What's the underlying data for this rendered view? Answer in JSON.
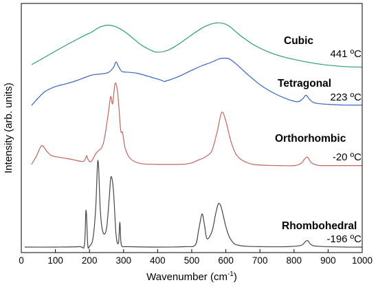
{
  "chart_data": {
    "type": "line",
    "xlabel": "Wavenumber (cm",
    "xlabel_sup": "-1",
    "xlabel_end": ")",
    "ylabel": "Intensity (arb. units)",
    "xlim": [
      0,
      1000
    ],
    "x_ticks": [
      0,
      100,
      200,
      300,
      400,
      500,
      600,
      700,
      800,
      900,
      1000
    ],
    "grid": false,
    "y_ticks_shown": false,
    "series": [
      {
        "phase": "Cubic",
        "temperature": "441 ºC",
        "color": "#2a9d7b",
        "x": [
          30,
          80,
          130,
          170,
          195,
          205,
          230,
          255,
          280,
          310,
          350,
          380,
          400,
          430,
          460,
          500,
          530,
          555,
          575,
          590,
          610,
          640,
          680,
          720,
          760,
          800,
          850,
          900,
          950,
          1000
        ],
        "y": [
          0.1,
          0.3,
          0.5,
          0.65,
          0.74,
          0.77,
          0.88,
          0.92,
          0.88,
          0.75,
          0.52,
          0.4,
          0.36,
          0.4,
          0.52,
          0.72,
          0.86,
          0.94,
          0.97,
          0.96,
          0.9,
          0.72,
          0.52,
          0.38,
          0.28,
          0.21,
          0.14,
          0.09,
          0.06,
          0.05
        ]
      },
      {
        "phase": "Tetragonal",
        "temperature": "223 ºC",
        "color": "#3563c4",
        "x": [
          30,
          50,
          70,
          100,
          130,
          160,
          190,
          210,
          230,
          255,
          270,
          278,
          285,
          295,
          310,
          340,
          380,
          410,
          420,
          425,
          440,
          470,
          500,
          530,
          560,
          580,
          595,
          610,
          630,
          660,
          700,
          740,
          780,
          810,
          825,
          835,
          845,
          860,
          900,
          950,
          1000
        ],
        "y": [
          0.05,
          0.25,
          0.42,
          0.55,
          0.62,
          0.7,
          0.8,
          0.86,
          0.88,
          0.92,
          1.05,
          1.2,
          1.08,
          0.95,
          0.93,
          0.9,
          0.8,
          0.72,
          0.68,
          0.7,
          0.74,
          0.85,
          0.98,
          1.1,
          1.2,
          1.28,
          1.3,
          1.28,
          1.15,
          0.9,
          0.6,
          0.38,
          0.22,
          0.15,
          0.22,
          0.32,
          0.22,
          0.12,
          0.08,
          0.06,
          0.06
        ]
      },
      {
        "phase": "Orthorhombic",
        "temperature": "-20 ºC",
        "color": "#c0645a",
        "x": [
          30,
          45,
          60,
          75,
          90,
          120,
          150,
          180,
          188,
          192,
          196,
          205,
          220,
          240,
          255,
          262,
          268,
          275,
          282,
          287,
          292,
          297,
          305,
          320,
          350,
          400,
          450,
          480,
          500,
          515,
          530,
          545,
          560,
          575,
          588,
          600,
          615,
          630,
          650,
          680,
          720,
          760,
          800,
          820,
          832,
          840,
          850,
          870,
          900,
          950,
          1000
        ],
        "y": [
          0.05,
          0.35,
          0.7,
          0.5,
          0.35,
          0.28,
          0.22,
          0.15,
          0.25,
          0.35,
          0.22,
          0.15,
          0.45,
          0.75,
          1.8,
          2.4,
          2.15,
          2.85,
          2.6,
          1.9,
          1.2,
          1.15,
          0.6,
          0.25,
          0.08,
          0.05,
          0.05,
          0.06,
          0.1,
          0.18,
          0.25,
          0.35,
          0.55,
          1.2,
          1.85,
          1.55,
          0.85,
          0.4,
          0.18,
          0.05,
          0.02,
          0.01,
          0.01,
          0.08,
          0.25,
          0.3,
          0.12,
          0.02,
          0.01,
          0.01,
          0.01
        ]
      },
      {
        "phase": "Rhombohedral",
        "temperature": "-196 ºC",
        "color": "#444444",
        "x": [
          10,
          100,
          170,
          185,
          190,
          195,
          200,
          210,
          218,
          225,
          232,
          240,
          250,
          258,
          263,
          270,
          278,
          285,
          289,
          292,
          296,
          310,
          400,
          480,
          510,
          520,
          530,
          537,
          545,
          560,
          570,
          578,
          585,
          590,
          600,
          610,
          625,
          640,
          660,
          700,
          780,
          820,
          832,
          840,
          850,
          870,
          950,
          1000
        ],
        "y": [
          0.0,
          0.0,
          0.01,
          0.05,
          0.9,
          0.05,
          0.02,
          0.2,
          0.9,
          2.1,
          0.85,
          0.35,
          0.45,
          1.2,
          1.7,
          1.4,
          0.3,
          0.1,
          0.6,
          0.15,
          0.02,
          0.01,
          0.0,
          0.01,
          0.05,
          0.4,
          0.8,
          0.55,
          0.2,
          0.4,
          0.8,
          1.05,
          1.0,
          0.85,
          0.5,
          0.25,
          0.08,
          0.04,
          0.02,
          0.01,
          0.01,
          0.04,
          0.12,
          0.16,
          0.06,
          0.02,
          0.0,
          0.0
        ]
      }
    ]
  }
}
